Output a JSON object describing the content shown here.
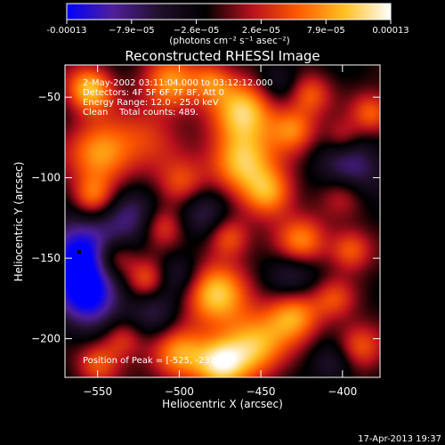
{
  "colorbar": {
    "tick_labels": [
      "-0.00013",
      "−7.9e−05",
      "−2.6e−05",
      "2.6e−05",
      "7.9e−05",
      "0.00013"
    ],
    "min": -0.00013,
    "max": 0.00013,
    "unit_label": "(photons cm⁻² s⁻¹ asec⁻²)"
  },
  "header": {
    "title": "Reconstructed RHESSI Image"
  },
  "info": {
    "line1": "2-May-2002 03:11:04.000 to 03:12:12.000",
    "line2": "Detectors: 4F 5F 6F 7F 8F, Att 0",
    "line3": "Energy Range: 12.0 - 25.0 keV",
    "line4": "Clean    Total counts: 489.",
    "peak": "Position of Peak = [-525, -237]"
  },
  "footer": {
    "timestamp": "17-Apr-2013 19:37"
  },
  "chart_data": {
    "type": "heatmap",
    "title": "Reconstructed RHESSI Image",
    "xlabel": "Heliocentric X (arcsec)",
    "ylabel": "Heliocentric Y (arcsec)",
    "xlim": [
      -570,
      -377
    ],
    "ylim": [
      -224,
      -30
    ],
    "x_ticks": [
      -550,
      -500,
      -450,
      -400
    ],
    "y_ticks": [
      -50,
      -100,
      -150,
      -200
    ],
    "x_tick_labels": [
      "−550",
      "−500",
      "−450",
      "−400"
    ],
    "y_tick_labels": [
      "−50",
      "−100",
      "−150",
      "−200"
    ],
    "colormap": [
      "#0000ff",
      "#4f1f9a",
      "#20102a",
      "#000000",
      "#b8101e",
      "#ff5a00",
      "#ffc020",
      "#ffffff"
    ],
    "value_range": [
      -0.00013,
      0.00013
    ],
    "sources": [
      {
        "x": -555,
        "y": -45,
        "v": 0.85,
        "r": 10
      },
      {
        "x": -548,
        "y": -85,
        "v": 0.75,
        "r": 14
      },
      {
        "x": -553,
        "y": -112,
        "v": 0.55,
        "r": 9
      },
      {
        "x": -520,
        "y": -75,
        "v": 0.35,
        "r": 14
      },
      {
        "x": -505,
        "y": -42,
        "v": 0.7,
        "r": 12
      },
      {
        "x": -480,
        "y": -40,
        "v": 0.5,
        "r": 9
      },
      {
        "x": -460,
        "y": -58,
        "v": 0.85,
        "r": 14
      },
      {
        "x": -462,
        "y": -90,
        "v": 0.85,
        "r": 14
      },
      {
        "x": -445,
        "y": -110,
        "v": 0.7,
        "r": 11
      },
      {
        "x": -430,
        "y": -70,
        "v": 0.6,
        "r": 10
      },
      {
        "x": -420,
        "y": -48,
        "v": 0.5,
        "r": 9
      },
      {
        "x": -498,
        "y": -105,
        "v": 0.55,
        "r": 11
      },
      {
        "x": -510,
        "y": -130,
        "v": 0.45,
        "r": 9
      },
      {
        "x": -470,
        "y": -137,
        "v": 0.55,
        "r": 9
      },
      {
        "x": -425,
        "y": -140,
        "v": 0.7,
        "r": 11
      },
      {
        "x": -395,
        "y": -145,
        "v": 0.55,
        "r": 9
      },
      {
        "x": -400,
        "y": -110,
        "v": 0.4,
        "r": 10
      },
      {
        "x": -540,
        "y": -150,
        "v": 0.6,
        "r": 9
      },
      {
        "x": -520,
        "y": -163,
        "v": 0.55,
        "r": 9
      },
      {
        "x": -478,
        "y": -172,
        "v": 0.85,
        "r": 14
      },
      {
        "x": -455,
        "y": -205,
        "v": 0.8,
        "r": 14
      },
      {
        "x": -430,
        "y": -185,
        "v": 0.75,
        "r": 12
      },
      {
        "x": -500,
        "y": -210,
        "v": 0.7,
        "r": 12
      },
      {
        "x": -475,
        "y": -215,
        "v": 0.85,
        "r": 11
      },
      {
        "x": -535,
        "y": -200,
        "v": 0.45,
        "r": 9
      },
      {
        "x": -550,
        "y": -215,
        "v": 0.5,
        "r": 9
      },
      {
        "x": -390,
        "y": -205,
        "v": 0.55,
        "r": 10
      },
      {
        "x": -405,
        "y": -175,
        "v": 0.4,
        "r": 9
      },
      {
        "x": -382,
        "y": -60,
        "v": 0.55,
        "r": 9
      },
      {
        "x": -400,
        "y": -75,
        "v": 0.35,
        "r": 8
      },
      {
        "x": -560,
        "y": -148,
        "v": -0.95,
        "r": 16
      },
      {
        "x": -555,
        "y": -175,
        "v": -0.8,
        "r": 14
      },
      {
        "x": -395,
        "y": -95,
        "v": -0.55,
        "r": 14
      },
      {
        "x": -530,
        "y": -123,
        "v": -0.5,
        "r": 12
      },
      {
        "x": -485,
        "y": -120,
        "v": -0.5,
        "r": 12
      },
      {
        "x": -430,
        "y": -160,
        "v": -0.45,
        "r": 12
      },
      {
        "x": -515,
        "y": -185,
        "v": -0.4,
        "r": 11
      },
      {
        "x": -405,
        "y": -215,
        "v": -0.35,
        "r": 10
      },
      {
        "x": -440,
        "y": -40,
        "v": -0.35,
        "r": 10
      },
      {
        "x": -500,
        "y": -160,
        "v": -0.4,
        "r": 10
      }
    ]
  }
}
